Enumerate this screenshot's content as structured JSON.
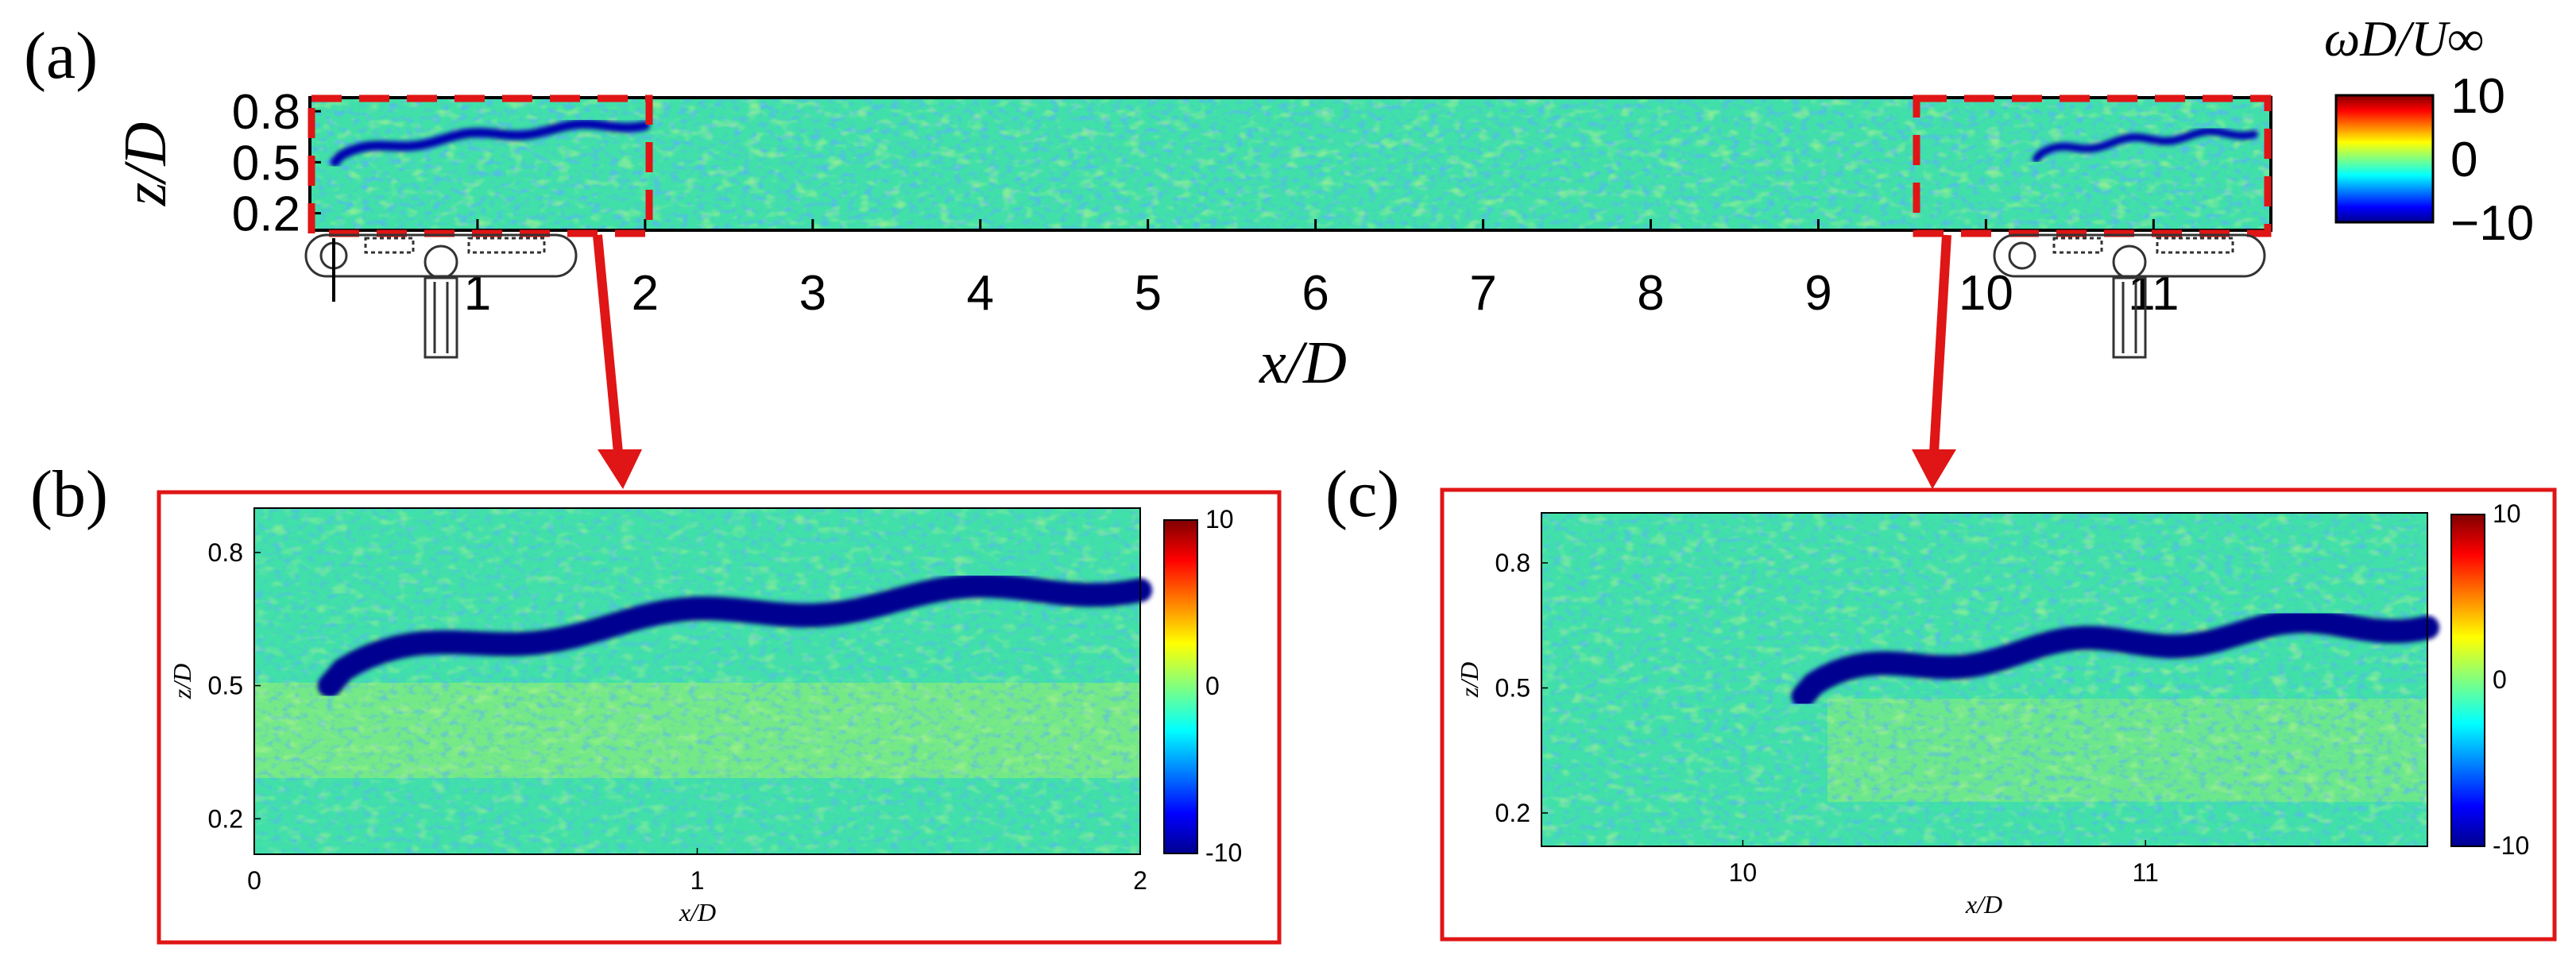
{
  "figure": {
    "panels": [
      "(a)",
      "(b)",
      "(c)"
    ]
  },
  "colormap": {
    "name": "jet",
    "stops": [
      "#00008f",
      "#0000ff",
      "#00ffff",
      "#ffff00",
      "#ff0000",
      "#800000"
    ],
    "background": "#40e0a8"
  },
  "chart_data": [
    {
      "type": "heatmap",
      "panel": "(a)",
      "xlabel": "x/D",
      "ylabel": "z/D",
      "xlim": [
        0,
        11.7
      ],
      "ylim": [
        0.1,
        0.88
      ],
      "xticks": [
        1,
        2,
        3,
        4,
        5,
        6,
        7,
        8,
        9,
        10,
        11
      ],
      "xtick_labels": [
        "1",
        "2",
        "3",
        "4",
        "5",
        "6",
        "7",
        "8",
        "9",
        "10",
        "11"
      ],
      "yticks": [
        0.2,
        0.5,
        0.8
      ],
      "ytick_labels": [
        "0.2",
        "0.5",
        "0.8"
      ],
      "colorbar": {
        "title": "ωD/U∞",
        "range": [
          -10,
          10
        ],
        "ticks": [
          10,
          0,
          -10
        ],
        "tick_labels": [
          "10",
          "0",
          "−10"
        ]
      },
      "zoom_regions": [
        {
          "x": [
            0,
            2
          ],
          "target": "(b)"
        },
        {
          "x": [
            9.6,
            11.7
          ],
          "target": "(c)"
        }
      ],
      "turbines_x": [
        0.15,
        10.3
      ],
      "shear_layers": [
        {
          "x_start": 0.15,
          "x_end": 2.0,
          "z_start": 0.5,
          "z_end": 0.73
        },
        {
          "x_start": 10.3,
          "x_end": 11.6,
          "z_start": 0.52,
          "z_end": 0.68
        }
      ]
    },
    {
      "type": "heatmap",
      "panel": "(b)",
      "xlabel": "x/D",
      "ylabel": "z/D",
      "xlim": [
        0,
        2
      ],
      "ylim": [
        0.12,
        0.9
      ],
      "xticks": [
        0,
        1,
        2
      ],
      "xtick_labels": [
        "0",
        "1",
        "2"
      ],
      "yticks": [
        0.2,
        0.5,
        0.8
      ],
      "ytick_labels": [
        "0.2",
        "0.5",
        "0.8"
      ],
      "colorbar": {
        "range": [
          -10,
          10
        ],
        "ticks": [
          10,
          0,
          -10
        ],
        "tick_labels": [
          "10",
          "0",
          "-10"
        ]
      },
      "shear_layer": {
        "x_start": 0.17,
        "x_end": 2.0,
        "z_start": 0.5,
        "z_end": 0.73
      }
    },
    {
      "type": "heatmap",
      "panel": "(c)",
      "xlabel": "x/D",
      "ylabel": "z/D",
      "xlim": [
        9.5,
        11.7
      ],
      "ylim": [
        0.12,
        0.92
      ],
      "xticks": [
        10,
        11
      ],
      "xtick_labels": [
        "10",
        "11"
      ],
      "yticks": [
        0.2,
        0.5,
        0.8
      ],
      "ytick_labels": [
        "0.2",
        "0.5",
        "0.8"
      ],
      "colorbar": {
        "range": [
          -10,
          10
        ],
        "ticks": [
          10,
          0,
          -10
        ],
        "tick_labels": [
          "10",
          "0",
          "-10"
        ]
      },
      "shear_layer": {
        "x_start": 10.15,
        "x_end": 11.7,
        "z_start": 0.48,
        "z_end": 0.66
      }
    }
  ]
}
